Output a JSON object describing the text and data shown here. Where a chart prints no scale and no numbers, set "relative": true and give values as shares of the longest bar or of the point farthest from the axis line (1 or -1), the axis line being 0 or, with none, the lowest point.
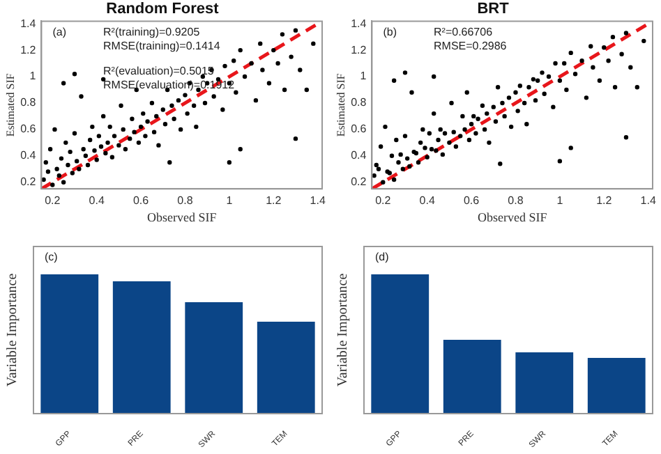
{
  "chart_data": [
    {
      "type": "scatter",
      "title": "Random Forest",
      "xlabel": "Observed SIF",
      "ylabel": "Estimated SIF",
      "annotations": [
        "(a)",
        "R²(training)=0.9205",
        "RMSE(training)=0.1414",
        "R²(evaluation)=0.5015",
        "RMSE(evaluation)=0.1912"
      ],
      "xlim": [
        0.15,
        1.42
      ],
      "ylim": [
        0.15,
        1.42
      ],
      "xticks": [
        0.2,
        0.4,
        0.6,
        0.8,
        1,
        1.2,
        1.4
      ],
      "yticks": [
        0.2,
        0.4,
        0.6,
        0.8,
        1,
        1.2,
        1.4
      ],
      "series": [
        {
          "type": "scatter",
          "color": "#000000",
          "marker": "circle",
          "x": [
            0.16,
            0.17,
            0.18,
            0.19,
            0.2,
            0.21,
            0.22,
            0.23,
            0.24,
            0.25,
            0.26,
            0.27,
            0.28,
            0.29,
            0.3,
            0.31,
            0.32,
            0.33,
            0.34,
            0.35,
            0.36,
            0.37,
            0.38,
            0.39,
            0.4,
            0.41,
            0.42,
            0.43,
            0.44,
            0.45,
            0.46,
            0.47,
            0.48,
            0.5,
            0.51,
            0.52,
            0.53,
            0.55,
            0.56,
            0.57,
            0.58,
            0.59,
            0.6,
            0.61,
            0.62,
            0.63,
            0.65,
            0.66,
            0.67,
            0.68,
            0.7,
            0.71,
            0.72,
            0.73,
            0.74,
            0.75,
            0.77,
            0.78,
            0.8,
            0.81,
            0.82,
            0.84,
            0.85,
            0.86,
            0.88,
            0.89,
            0.9,
            0.92,
            0.93,
            0.95,
            0.97,
            0.98,
            1.0,
            1.02,
            1.03,
            1.05,
            1.05,
            1.07,
            1.1,
            1.12,
            1.14,
            1.15,
            1.18,
            1.2,
            1.22,
            1.24,
            1.25,
            1.28,
            1.3,
            1.3,
            1.32,
            1.35,
            1.38,
            0.25,
            0.3,
            0.43,
            1.0
          ],
          "values": [
            0.22,
            0.35,
            0.28,
            0.45,
            0.18,
            0.6,
            0.3,
            0.25,
            0.38,
            0.2,
            0.5,
            0.33,
            0.43,
            0.27,
            0.57,
            0.36,
            0.3,
            0.85,
            0.45,
            0.4,
            0.33,
            0.52,
            0.62,
            0.44,
            0.37,
            0.55,
            0.47,
            0.7,
            0.42,
            0.5,
            0.62,
            0.39,
            0.55,
            0.48,
            0.78,
            0.6,
            0.45,
            0.53,
            0.68,
            0.58,
            0.9,
            0.5,
            0.62,
            0.72,
            0.55,
            0.66,
            0.8,
            0.58,
            0.7,
            0.48,
            0.75,
            0.64,
            0.9,
            0.35,
            0.78,
            0.68,
            0.82,
            0.6,
            0.86,
            0.72,
            0.95,
            0.78,
            0.62,
            0.9,
            1.0,
            0.8,
            0.95,
            1.05,
            0.85,
            0.98,
            0.75,
            1.08,
            0.95,
            1.12,
            0.88,
            1.2,
            0.45,
            1.0,
            1.1,
            0.82,
            1.25,
            1.05,
            0.95,
            1.2,
            1.1,
            1.32,
            0.9,
            1.15,
            0.53,
            1.35,
            1.05,
            0.9,
            1.25,
            0.95,
            1.02,
            0.98,
            0.35
          ]
        },
        {
          "type": "line",
          "color": "#e8161b",
          "marker": "none",
          "line_style": "dashed",
          "x": [
            0.15,
            1.4
          ],
          "values": [
            0.15,
            1.4
          ]
        }
      ]
    },
    {
      "type": "scatter",
      "title": "BRT",
      "xlabel": "Observed SIF",
      "ylabel": "Estimated SIF",
      "annotations": [
        "(b)",
        "R²=0.66706",
        "RMSE=0.2986"
      ],
      "xlim": [
        0.15,
        1.42
      ],
      "ylim": [
        0.15,
        1.42
      ],
      "xticks": [
        0.2,
        0.4,
        0.6,
        0.8,
        1,
        1.2,
        1.4
      ],
      "yticks": [
        0.2,
        0.4,
        0.6,
        0.8,
        1,
        1.2,
        1.4
      ],
      "series": [
        {
          "type": "scatter",
          "color": "#000000",
          "marker": "circle",
          "x": [
            0.16,
            0.17,
            0.18,
            0.19,
            0.2,
            0.21,
            0.22,
            0.23,
            0.24,
            0.25,
            0.26,
            0.27,
            0.28,
            0.29,
            0.3,
            0.31,
            0.32,
            0.33,
            0.34,
            0.35,
            0.36,
            0.37,
            0.38,
            0.39,
            0.4,
            0.41,
            0.42,
            0.43,
            0.44,
            0.45,
            0.46,
            0.47,
            0.48,
            0.5,
            0.51,
            0.52,
            0.53,
            0.55,
            0.56,
            0.57,
            0.58,
            0.59,
            0.6,
            0.61,
            0.62,
            0.63,
            0.65,
            0.66,
            0.67,
            0.68,
            0.7,
            0.71,
            0.72,
            0.73,
            0.74,
            0.75,
            0.77,
            0.78,
            0.8,
            0.81,
            0.82,
            0.84,
            0.85,
            0.86,
            0.88,
            0.89,
            0.9,
            0.92,
            0.93,
            0.95,
            0.97,
            0.98,
            1.0,
            1.02,
            1.03,
            1.05,
            1.05,
            1.07,
            1.1,
            1.12,
            1.14,
            1.15,
            1.18,
            1.2,
            1.22,
            1.24,
            1.25,
            1.28,
            1.3,
            1.3,
            1.32,
            1.35,
            1.38,
            0.25,
            0.3,
            0.43,
            1.0
          ],
          "values": [
            0.25,
            0.33,
            0.3,
            0.47,
            0.2,
            0.62,
            0.28,
            0.27,
            0.4,
            0.22,
            0.52,
            0.35,
            0.41,
            0.3,
            0.55,
            0.38,
            0.32,
            0.88,
            0.43,
            0.42,
            0.35,
            0.5,
            0.6,
            0.46,
            0.39,
            0.57,
            0.45,
            0.72,
            0.44,
            0.52,
            0.6,
            0.41,
            0.57,
            0.5,
            0.8,
            0.58,
            0.47,
            0.55,
            0.7,
            0.6,
            0.88,
            0.52,
            0.64,
            0.7,
            0.57,
            0.68,
            0.78,
            0.6,
            0.72,
            0.5,
            0.77,
            0.66,
            0.92,
            0.34,
            0.8,
            0.7,
            0.84,
            0.62,
            0.88,
            0.74,
            0.93,
            0.8,
            0.64,
            0.92,
            0.98,
            0.82,
            0.97,
            1.03,
            0.87,
            1.0,
            0.77,
            1.1,
            0.97,
            1.1,
            0.9,
            1.18,
            0.46,
            1.02,
            1.12,
            0.84,
            1.23,
            1.07,
            0.97,
            1.22,
            1.12,
            1.3,
            0.92,
            1.17,
            0.54,
            1.33,
            1.07,
            0.92,
            1.27,
            0.97,
            1.03,
            1.0,
            0.36
          ]
        },
        {
          "type": "line",
          "color": "#e8161b",
          "marker": "none",
          "line_style": "dashed",
          "x": [
            0.15,
            1.4
          ],
          "values": [
            0.15,
            1.4
          ]
        }
      ]
    },
    {
      "type": "bar",
      "ylabel": "Variable Importance",
      "annotations": [
        "(c)"
      ],
      "categories": [
        "GPP",
        "PRE",
        "SWR",
        "TEM"
      ],
      "values": [
        1,
        0.95,
        0.8,
        0.66
      ],
      "color": "#0b4587",
      "relative": true
    },
    {
      "type": "bar",
      "ylabel": "Variable Importance",
      "annotations": [
        "(d)"
      ],
      "categories": [
        "GPP",
        "PRE",
        "SWR",
        "TEM"
      ],
      "values": [
        1,
        0.53,
        0.44,
        0.4
      ],
      "color": "#0b4587",
      "relative": true
    }
  ]
}
